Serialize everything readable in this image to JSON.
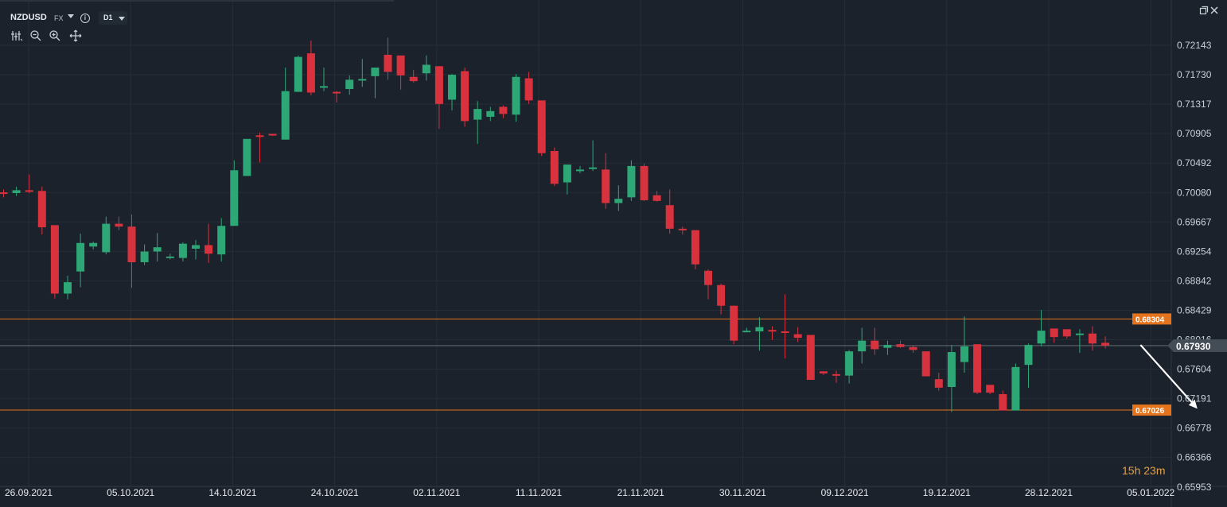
{
  "header": {
    "symbol": "NZDUSD",
    "market": "FX",
    "timeframe": "D1",
    "countdown": "15h 23m"
  },
  "icons": [
    "caret-down-icon",
    "info-icon",
    "indicators-icon",
    "zoom-out-icon",
    "zoom-in-icon",
    "crosshair-icon",
    "restore-window-icon",
    "close-icon"
  ],
  "colors": {
    "background": "#1b222b",
    "up": "#2ea777",
    "down": "#d8323e",
    "level": "#e5731c",
    "current_price": "#909aa5",
    "arrow": "#ffffff",
    "countdown": "#e2a14a"
  },
  "chart_data": {
    "type": "candlestick",
    "symbol": "NZDUSD",
    "timeframe": "D1",
    "ylim": [
      0.6575,
      0.7227
    ],
    "y_ticks": [
      "0.72143",
      "0.71730",
      "0.71317",
      "0.70905",
      "0.70492",
      "0.70080",
      "0.69667",
      "0.69254",
      "0.68842",
      "0.68429",
      "0.68016",
      "0.67604",
      "0.67191",
      "0.66778",
      "0.66366",
      "0.65953"
    ],
    "x_ticks": [
      "26.09.2021",
      "05.10.2021",
      "14.10.2021",
      "24.10.2021",
      "02.11.2021",
      "11.11.2021",
      "21.11.2021",
      "30.11.2021",
      "09.12.2021",
      "19.12.2021",
      "28.12.2021",
      "05.01.2022"
    ],
    "grid": true,
    "candles": [
      [
        0.7008,
        0.7012,
        0.7001,
        0.7006
      ],
      [
        0.7007,
        0.7016,
        0.7003,
        0.7011
      ],
      [
        0.7011,
        0.7033,
        0.7007,
        0.701
      ],
      [
        0.701,
        0.7016,
        0.6949,
        0.6959
      ],
      [
        0.6962,
        0.6962,
        0.6859,
        0.6866
      ],
      [
        0.6866,
        0.6891,
        0.6858,
        0.6882
      ],
      [
        0.6897,
        0.695,
        0.6875,
        0.6937
      ],
      [
        0.6932,
        0.6939,
        0.6928,
        0.6937
      ],
      [
        0.6924,
        0.6974,
        0.6921,
        0.6964
      ],
      [
        0.6964,
        0.6974,
        0.6955,
        0.696
      ],
      [
        0.696,
        0.6977,
        0.6874,
        0.691
      ],
      [
        0.691,
        0.6935,
        0.6906,
        0.6925
      ],
      [
        0.6925,
        0.6951,
        0.6911,
        0.6931
      ],
      [
        0.6917,
        0.6922,
        0.6914,
        0.6918
      ],
      [
        0.6916,
        0.6938,
        0.6911,
        0.6936
      ],
      [
        0.6929,
        0.6941,
        0.6914,
        0.6934
      ],
      [
        0.6934,
        0.6964,
        0.6909,
        0.6922
      ],
      [
        0.6921,
        0.6972,
        0.6911,
        0.6961
      ],
      [
        0.6961,
        0.7053,
        0.6961,
        0.7039
      ],
      [
        0.7031,
        0.7079,
        0.7031,
        0.7083
      ],
      [
        0.7088,
        0.7092,
        0.705,
        0.7086
      ],
      [
        0.709,
        0.709,
        0.7087,
        0.7089
      ],
      [
        0.7082,
        0.7183,
        0.7082,
        0.715
      ],
      [
        0.7149,
        0.72,
        0.7149,
        0.7198
      ],
      [
        0.7203,
        0.7221,
        0.7144,
        0.7148
      ],
      [
        0.7155,
        0.7183,
        0.715,
        0.7157
      ],
      [
        0.7149,
        0.715,
        0.7134,
        0.7148
      ],
      [
        0.7153,
        0.7172,
        0.7145,
        0.7166
      ],
      [
        0.7166,
        0.7195,
        0.7156,
        0.7167
      ],
      [
        0.7171,
        0.7181,
        0.714,
        0.7183
      ],
      [
        0.7201,
        0.7225,
        0.7166,
        0.7177
      ],
      [
        0.72,
        0.72,
        0.7152,
        0.7172
      ],
      [
        0.717,
        0.718,
        0.7162,
        0.7164
      ],
      [
        0.7175,
        0.72,
        0.7165,
        0.7187
      ],
      [
        0.7185,
        0.7185,
        0.7097,
        0.7132
      ],
      [
        0.7138,
        0.7174,
        0.7123,
        0.7173
      ],
      [
        0.7178,
        0.7183,
        0.71,
        0.7108
      ],
      [
        0.711,
        0.7136,
        0.7076,
        0.7125
      ],
      [
        0.7114,
        0.7128,
        0.7108,
        0.7122
      ],
      [
        0.7128,
        0.713,
        0.7112,
        0.7118
      ],
      [
        0.7117,
        0.7174,
        0.7107,
        0.717
      ],
      [
        0.7168,
        0.7177,
        0.7132,
        0.7137
      ],
      [
        0.7137,
        0.7137,
        0.7059,
        0.7063
      ],
      [
        0.7066,
        0.7071,
        0.7017,
        0.702
      ],
      [
        0.7022,
        0.7047,
        0.7005,
        0.7047
      ],
      [
        0.704,
        0.7045,
        0.7035,
        0.704
      ],
      [
        0.7043,
        0.7081,
        0.7038,
        0.7043
      ],
      [
        0.704,
        0.7063,
        0.6985,
        0.6993
      ],
      [
        0.6993,
        0.7018,
        0.6982,
        0.6999
      ],
      [
        0.7001,
        0.7053,
        0.6996,
        0.7045
      ],
      [
        0.7045,
        0.7048,
        0.6996,
        0.6997
      ],
      [
        0.7004,
        0.701,
        0.6995,
        0.6996
      ],
      [
        0.699,
        0.7012,
        0.695,
        0.6957
      ],
      [
        0.6957,
        0.696,
        0.6949,
        0.6955
      ],
      [
        0.6955,
        0.6955,
        0.69,
        0.6907
      ],
      [
        0.6898,
        0.69,
        0.6858,
        0.6878
      ],
      [
        0.6878,
        0.688,
        0.6837,
        0.6849
      ],
      [
        0.6849,
        0.6849,
        0.6795,
        0.68
      ],
      [
        0.6814,
        0.6818,
        0.6812,
        0.6814
      ],
      [
        0.6813,
        0.6833,
        0.6786,
        0.6819
      ],
      [
        0.6815,
        0.682,
        0.6801,
        0.6814
      ],
      [
        0.6813,
        0.6865,
        0.6775,
        0.6812
      ],
      [
        0.6809,
        0.6819,
        0.6798,
        0.6804
      ],
      [
        0.6808,
        0.6808,
        0.6745,
        0.6745
      ],
      [
        0.6757,
        0.6757,
        0.6752,
        0.6754
      ],
      [
        0.6753,
        0.6758,
        0.6741,
        0.6751
      ],
      [
        0.6751,
        0.6787,
        0.674,
        0.6785
      ],
      [
        0.6785,
        0.6818,
        0.6768,
        0.68
      ],
      [
        0.68,
        0.6818,
        0.678,
        0.6788
      ],
      [
        0.679,
        0.68,
        0.678,
        0.6794
      ],
      [
        0.6795,
        0.68,
        0.679,
        0.6791
      ],
      [
        0.6791,
        0.6793,
        0.6783,
        0.6787
      ],
      [
        0.6785,
        0.6785,
        0.675,
        0.675
      ],
      [
        0.6746,
        0.6755,
        0.673,
        0.6734
      ],
      [
        0.6735,
        0.6794,
        0.67,
        0.6784
      ],
      [
        0.677,
        0.6834,
        0.6755,
        0.6792
      ],
      [
        0.6795,
        0.6795,
        0.6725,
        0.6727
      ],
      [
        0.6738,
        0.6738,
        0.6725,
        0.6727
      ],
      [
        0.6725,
        0.673,
        0.6702,
        0.6702
      ],
      [
        0.6702,
        0.6768,
        0.6702,
        0.6763
      ],
      [
        0.6766,
        0.6796,
        0.6734,
        0.6794
      ],
      [
        0.6796,
        0.6843,
        0.6792,
        0.6814
      ],
      [
        0.6817,
        0.6817,
        0.6797,
        0.6805
      ],
      [
        0.6816,
        0.6816,
        0.6803,
        0.6806
      ],
      [
        0.6808,
        0.6816,
        0.6783,
        0.681
      ],
      [
        0.681,
        0.682,
        0.6786,
        0.6796
      ],
      [
        0.6797,
        0.6806,
        0.6789,
        0.6793
      ]
    ],
    "level_lines": [
      {
        "value": 0.68304,
        "label": "0.68304"
      },
      {
        "value": 0.67026,
        "label": "0.67026"
      }
    ],
    "current_price": {
      "value": 0.6793,
      "label": "0.67930"
    },
    "arrow": {
      "from": {
        "index": 88,
        "price": 0.6794
      },
      "to": {
        "index": 93,
        "price": 0.67045
      }
    }
  }
}
